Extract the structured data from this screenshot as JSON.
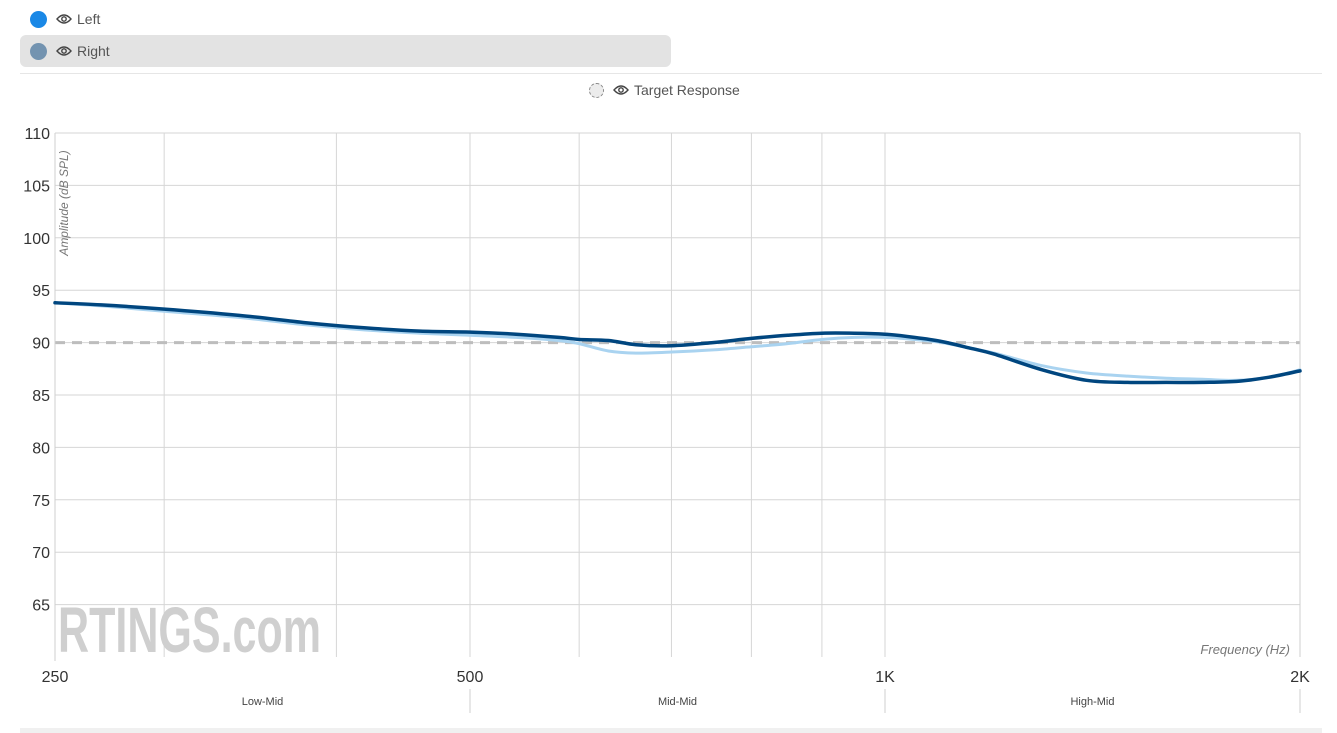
{
  "legend": {
    "items": [
      {
        "label": "Left",
        "color": "#1a88e6",
        "visible": true,
        "selected": false
      },
      {
        "label": "Right",
        "color": "#7393b0",
        "visible": true,
        "selected": true
      }
    ],
    "target": {
      "label": "Target Response"
    }
  },
  "chart_data": {
    "type": "line",
    "xlabel": "Frequency (Hz)",
    "ylabel": "Amplitude (dB SPL)",
    "xscale": "log",
    "xlim": [
      250,
      2000
    ],
    "ylim": [
      60,
      110
    ],
    "yticks": [
      65,
      70,
      75,
      80,
      85,
      90,
      95,
      100,
      105,
      110
    ],
    "xticks": [
      {
        "value": 250,
        "label": "250"
      },
      {
        "value": 500,
        "label": "500"
      },
      {
        "value": 1000,
        "label": "1K"
      },
      {
        "value": 2000,
        "label": "2K"
      }
    ],
    "x_gridlines": [
      250,
      300,
      400,
      500,
      600,
      700,
      800,
      900,
      1000,
      2000
    ],
    "bands": [
      {
        "label": "Low-Mid",
        "from": 250,
        "to": 500
      },
      {
        "label": "Mid-Mid",
        "from": 500,
        "to": 1000
      },
      {
        "label": "High-Mid",
        "from": 1000,
        "to": 2000
      }
    ],
    "target_level": 90,
    "grid": true,
    "watermark": "RTINGS.com",
    "series": [
      {
        "name": "Right",
        "color": "#a9d3f0",
        "x": [
          250,
          270,
          300,
          340,
          380,
          420,
          460,
          500,
          540,
          580,
          600,
          630,
          660,
          700,
          750,
          800,
          850,
          900,
          950,
          1000,
          1050,
          1100,
          1150,
          1200,
          1300,
          1400,
          1500,
          1600,
          1700,
          1800,
          1900,
          2000
        ],
        "y": [
          93.8,
          93.5,
          93.0,
          92.4,
          91.7,
          91.2,
          90.9,
          90.7,
          90.5,
          90.2,
          89.9,
          89.2,
          89.0,
          89.1,
          89.3,
          89.6,
          89.9,
          90.3,
          90.5,
          90.5,
          90.3,
          90.0,
          89.5,
          89.0,
          87.8,
          87.1,
          86.8,
          86.6,
          86.5,
          86.4,
          86.7,
          87.4
        ]
      },
      {
        "name": "Left",
        "color": "#00467f",
        "x": [
          250,
          270,
          300,
          340,
          380,
          420,
          460,
          500,
          540,
          580,
          600,
          630,
          660,
          700,
          750,
          800,
          850,
          900,
          950,
          1000,
          1050,
          1100,
          1150,
          1200,
          1300,
          1400,
          1500,
          1600,
          1700,
          1800,
          1900,
          2000
        ],
        "y": [
          93.8,
          93.6,
          93.2,
          92.6,
          91.9,
          91.4,
          91.1,
          91.0,
          90.8,
          90.5,
          90.3,
          90.2,
          89.8,
          89.7,
          90.0,
          90.4,
          90.7,
          90.9,
          90.9,
          90.8,
          90.5,
          90.1,
          89.5,
          88.9,
          87.4,
          86.4,
          86.2,
          86.2,
          86.2,
          86.3,
          86.7,
          87.3
        ]
      }
    ]
  }
}
